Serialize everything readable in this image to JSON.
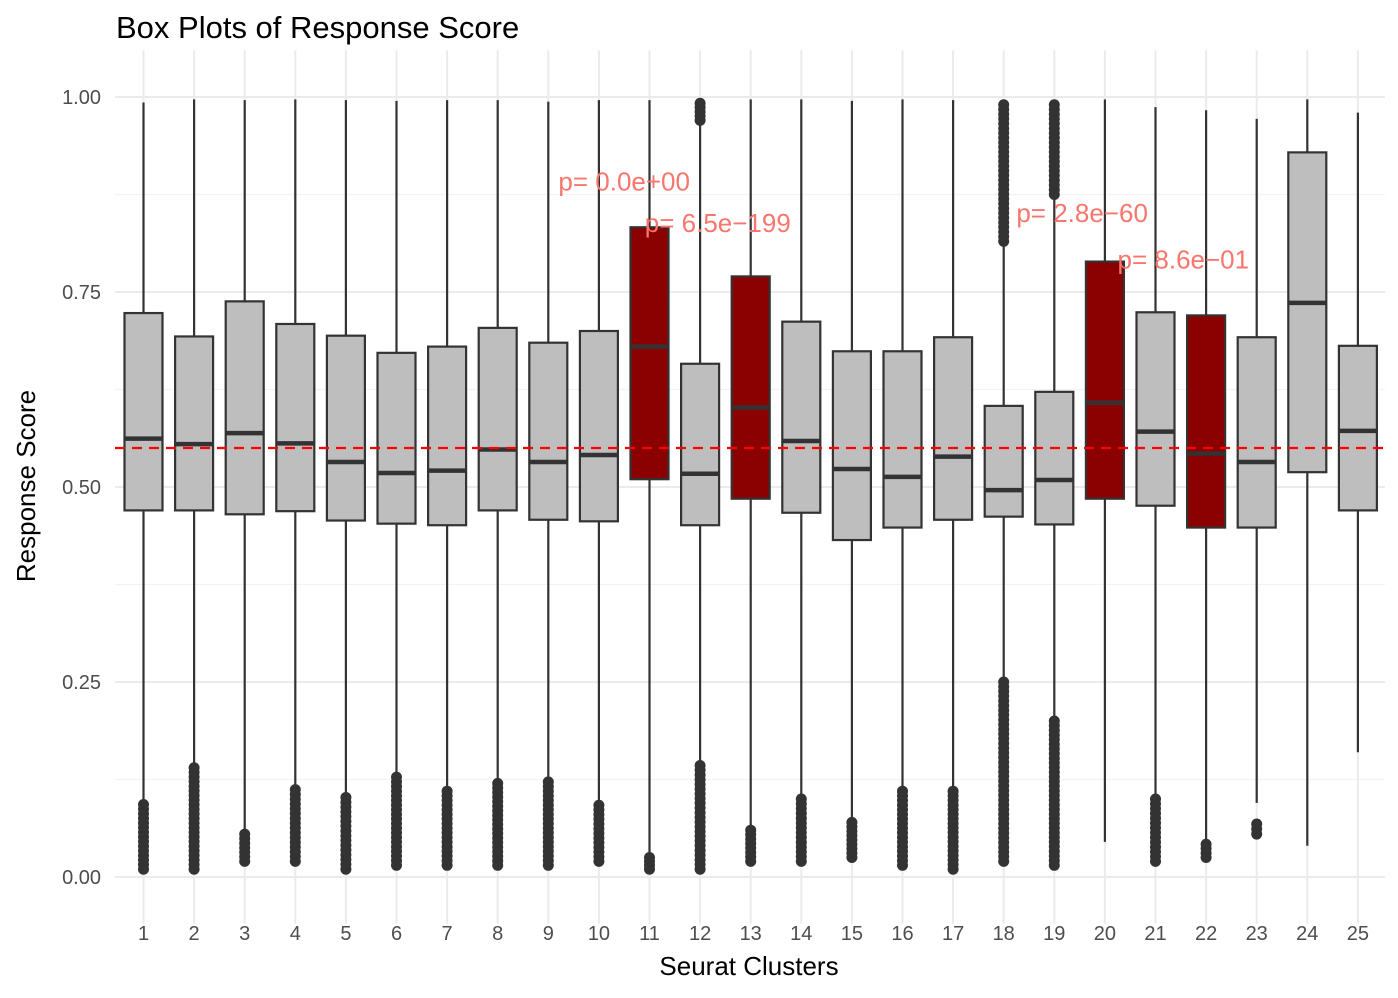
{
  "chart_data": {
    "type": "box",
    "title": "Box Plots of Response Score",
    "xlabel": "Seurat Clusters",
    "ylabel": "Response Score",
    "ylim": [
      -0.06,
      1.06
    ],
    "yticks": [
      "0.00",
      "0.25",
      "0.50",
      "0.75",
      "1.00"
    ],
    "ytick_values": [
      0,
      0.25,
      0.5,
      0.75,
      1.0
    ],
    "grid": true,
    "reference_line": {
      "y": 0.55,
      "style": "dashed",
      "color": "#ff0000"
    },
    "colors": {
      "default_box": "#bebebe",
      "highlight_box": "#8b0000",
      "outline": "#333333",
      "annotation": "#f8766d",
      "grid": "#ebebeb"
    },
    "categories": [
      "1",
      "2",
      "3",
      "4",
      "5",
      "6",
      "7",
      "8",
      "9",
      "10",
      "11",
      "12",
      "13",
      "14",
      "15",
      "16",
      "17",
      "18",
      "19",
      "20",
      "21",
      "22",
      "23",
      "24",
      "25"
    ],
    "boxes": [
      {
        "cluster": "1",
        "whisker_low": 0.095,
        "q1": 0.47,
        "median": 0.562,
        "q3": 0.723,
        "whisker_high": 0.993,
        "highlight": false,
        "outliers_range": [
          0.01,
          0.093
        ]
      },
      {
        "cluster": "2",
        "whisker_low": 0.14,
        "q1": 0.47,
        "median": 0.555,
        "q3": 0.693,
        "whisker_high": 0.997,
        "highlight": false,
        "outliers_range": [
          0.01,
          0.14
        ]
      },
      {
        "cluster": "3",
        "whisker_low": 0.06,
        "q1": 0.465,
        "median": 0.569,
        "q3": 0.738,
        "whisker_high": 0.996,
        "highlight": false,
        "outliers_range": [
          0.02,
          0.055
        ]
      },
      {
        "cluster": "4",
        "whisker_low": 0.115,
        "q1": 0.469,
        "median": 0.556,
        "q3": 0.709,
        "whisker_high": 0.997,
        "highlight": false,
        "outliers_range": [
          0.02,
          0.112
        ]
      },
      {
        "cluster": "5",
        "whisker_low": 0.105,
        "q1": 0.457,
        "median": 0.532,
        "q3": 0.694,
        "whisker_high": 0.996,
        "highlight": false,
        "outliers_range": [
          0.01,
          0.102
        ]
      },
      {
        "cluster": "6",
        "whisker_low": 0.13,
        "q1": 0.453,
        "median": 0.518,
        "q3": 0.672,
        "whisker_high": 0.995,
        "highlight": false,
        "outliers_range": [
          0.015,
          0.128
        ]
      },
      {
        "cluster": "7",
        "whisker_low": 0.11,
        "q1": 0.451,
        "median": 0.521,
        "q3": 0.68,
        "whisker_high": 0.996,
        "highlight": false,
        "outliers_range": [
          0.015,
          0.11
        ]
      },
      {
        "cluster": "8",
        "whisker_low": 0.12,
        "q1": 0.47,
        "median": 0.548,
        "q3": 0.704,
        "whisker_high": 0.996,
        "highlight": false,
        "outliers_range": [
          0.015,
          0.12
        ]
      },
      {
        "cluster": "9",
        "whisker_low": 0.125,
        "q1": 0.458,
        "median": 0.532,
        "q3": 0.685,
        "whisker_high": 0.994,
        "highlight": false,
        "outliers_range": [
          0.015,
          0.122
        ]
      },
      {
        "cluster": "10",
        "whisker_low": 0.095,
        "q1": 0.456,
        "median": 0.541,
        "q3": 0.7,
        "whisker_high": 0.996,
        "highlight": false,
        "outliers_range": [
          0.02,
          0.092
        ]
      },
      {
        "cluster": "11",
        "whisker_low": 0.03,
        "q1": 0.51,
        "median": 0.68,
        "q3": 0.833,
        "whisker_high": 0.996,
        "highlight": true,
        "outliers_range": [
          0.01,
          0.025
        ]
      },
      {
        "cluster": "12",
        "whisker_low": 0.145,
        "q1": 0.451,
        "median": 0.517,
        "q3": 0.658,
        "whisker_high": 0.965,
        "highlight": false,
        "outliers_range": [
          0.01,
          0.143
        ],
        "outliers_high_range": [
          0.97,
          0.992
        ]
      },
      {
        "cluster": "13",
        "whisker_low": 0.065,
        "q1": 0.485,
        "median": 0.602,
        "q3": 0.77,
        "whisker_high": 0.997,
        "highlight": true,
        "outliers_range": [
          0.02,
          0.06
        ]
      },
      {
        "cluster": "14",
        "whisker_low": 0.105,
        "q1": 0.467,
        "median": 0.559,
        "q3": 0.712,
        "whisker_high": 0.997,
        "highlight": false,
        "outliers_range": [
          0.02,
          0.1
        ]
      },
      {
        "cluster": "15",
        "whisker_low": 0.075,
        "q1": 0.432,
        "median": 0.523,
        "q3": 0.674,
        "whisker_high": 0.995,
        "highlight": false,
        "outliers_range": [
          0.025,
          0.07
        ]
      },
      {
        "cluster": "16",
        "whisker_low": 0.115,
        "q1": 0.448,
        "median": 0.513,
        "q3": 0.674,
        "whisker_high": 0.997,
        "highlight": false,
        "outliers_range": [
          0.015,
          0.11
        ]
      },
      {
        "cluster": "17",
        "whisker_low": 0.115,
        "q1": 0.458,
        "median": 0.539,
        "q3": 0.692,
        "whisker_high": 0.996,
        "highlight": false,
        "outliers_range": [
          0.01,
          0.11
        ]
      },
      {
        "cluster": "18",
        "whisker_low": 0.25,
        "q1": 0.462,
        "median": 0.496,
        "q3": 0.604,
        "whisker_high": 0.81,
        "highlight": false,
        "outliers_range": [
          0.02,
          0.25
        ],
        "outliers_high_range": [
          0.815,
          0.99
        ]
      },
      {
        "cluster": "19",
        "whisker_low": 0.205,
        "q1": 0.452,
        "median": 0.509,
        "q3": 0.622,
        "whisker_high": 0.87,
        "highlight": false,
        "outliers_range": [
          0.015,
          0.2
        ],
        "outliers_high_range": [
          0.875,
          0.99
        ]
      },
      {
        "cluster": "20",
        "whisker_low": 0.045,
        "q1": 0.485,
        "median": 0.608,
        "q3": 0.789,
        "whisker_high": 0.997,
        "highlight": true,
        "outliers_range": []
      },
      {
        "cluster": "21",
        "whisker_low": 0.105,
        "q1": 0.476,
        "median": 0.571,
        "q3": 0.724,
        "whisker_high": 0.987,
        "highlight": false,
        "outliers_range": [
          0.02,
          0.1
        ]
      },
      {
        "cluster": "22",
        "whisker_low": 0.045,
        "q1": 0.448,
        "median": 0.543,
        "q3": 0.72,
        "whisker_high": 0.983,
        "highlight": true,
        "outliers_range": [
          0.025,
          0.042
        ]
      },
      {
        "cluster": "23",
        "whisker_low": 0.095,
        "q1": 0.448,
        "median": 0.532,
        "q3": 0.692,
        "whisker_high": 0.972,
        "highlight": false,
        "outliers_range": [
          0.055,
          0.068
        ]
      },
      {
        "cluster": "24",
        "whisker_low": 0.04,
        "q1": 0.519,
        "median": 0.736,
        "q3": 0.929,
        "whisker_high": 0.997,
        "highlight": false,
        "outliers_range": []
      },
      {
        "cluster": "25",
        "whisker_low": 0.16,
        "q1": 0.47,
        "median": 0.572,
        "q3": 0.681,
        "whisker_high": 0.98,
        "highlight": false,
        "outliers_range": []
      }
    ],
    "annotations": [
      {
        "text": "p= 0.0e+00",
        "x": 10.5,
        "y": 0.88
      },
      {
        "text": "p= 6.5e−199",
        "x": 12.35,
        "y": 0.827
      },
      {
        "text": "p= 2.8e−60",
        "x": 19.55,
        "y": 0.84
      },
      {
        "text": "p= 8.6e−01",
        "x": 21.55,
        "y": 0.78
      }
    ]
  }
}
